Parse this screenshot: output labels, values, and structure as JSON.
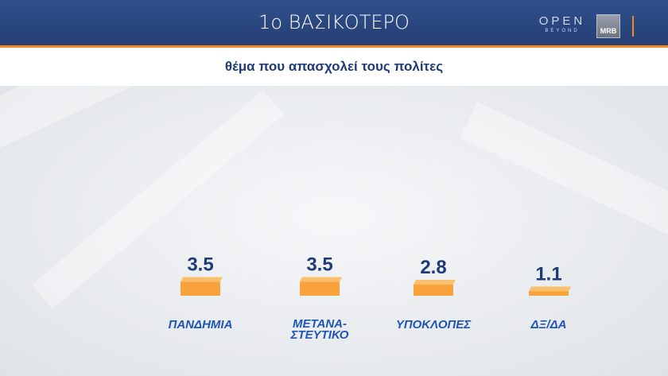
{
  "header": {
    "title": "1ο ΒΑΣΙΚΟΤΕΡΟ",
    "logo_open": "OPEN",
    "logo_open_sub": "BEYOND",
    "logo_mrb": "MRB"
  },
  "subtitle": "θέμα που απασχολεί τους πολίτες",
  "colors": {
    "header_bg": "#2f4f8c",
    "accent": "#f08a24",
    "bar": "#f7a23a",
    "value_text": "#1f3b78",
    "category_text": "#1f55b4"
  },
  "chart_data": {
    "type": "bar",
    "title": "",
    "categories": [
      "ΠΑΝΔΗΜΙΑ",
      "ΜΕΤΑΝΑ-\nΣΤΕΥΤΙΚΟ",
      "ΥΠΟΚΛΟΠΕΣ",
      "ΔΞ/ΔΑ"
    ],
    "values": [
      3.5,
      3.5,
      2.8,
      1.1
    ],
    "value_labels": [
      "3.5",
      "3.5",
      "2.8",
      "1.1"
    ],
    "xlabel": "",
    "ylabel": "",
    "ylim": [
      0,
      40
    ],
    "grid": false,
    "legend": "none"
  }
}
